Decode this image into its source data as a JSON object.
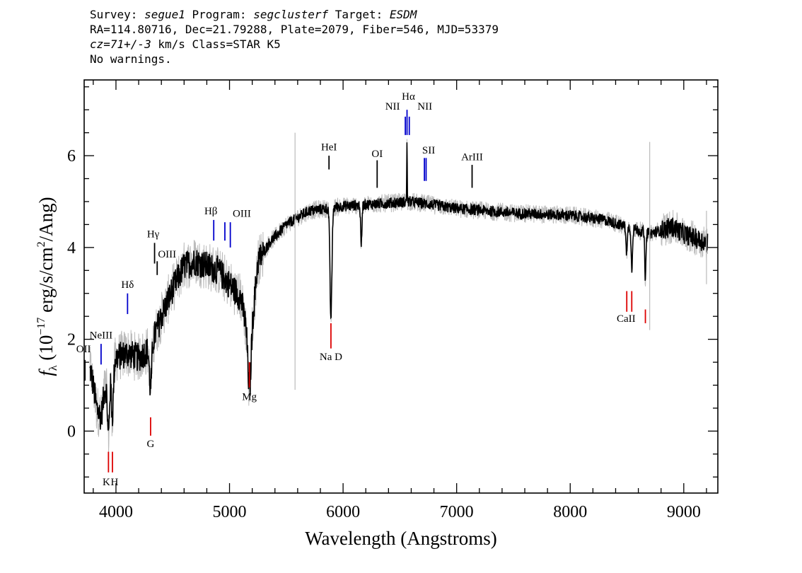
{
  "header": {
    "line1": {
      "survey_label": "Survey: ",
      "survey": "segue1",
      "program_label": " Program: ",
      "program": "segclusterf",
      "target_label": " Target: ",
      "target": "ESDM"
    },
    "line2": "RA=114.80716, Dec=21.79288, Plate=2079, Fiber=546, MJD=53379",
    "line3": {
      "cz": "cz=71+/-3",
      "rest": " km/s Class=STAR K5"
    },
    "line4": "No warnings."
  },
  "chart_data": {
    "type": "line",
    "xlabel": "Wavelength (Angstroms)",
    "ylabel_main": "f",
    "ylabel_sub": "λ",
    "ylabel_rest": " (10",
    "ylabel_exp": "−17",
    "ylabel_rest2": " erg/s/cm",
    "ylabel_exp2": "2",
    "ylabel_rest3": "/Ang)",
    "xlim": [
      3720,
      9300
    ],
    "ylim": [
      -1.35,
      7.65
    ],
    "xticks": [
      4000,
      5000,
      6000,
      7000,
      8000,
      9000
    ],
    "yticks": [
      0,
      2,
      4,
      6
    ],
    "colors": {
      "flux": "#000000",
      "error": "#bbbbbb",
      "emission": "#0000cc",
      "absorption": "#dd0000",
      "sky": "#000000"
    },
    "continuum_points": [
      [
        3780,
        1.3
      ],
      [
        3830,
        0.5
      ],
      [
        3870,
        0.3
      ],
      [
        3900,
        0.9
      ],
      [
        3950,
        1.2
      ],
      [
        4000,
        1.6
      ],
      [
        4100,
        1.7
      ],
      [
        4200,
        1.6
      ],
      [
        4300,
        1.8
      ],
      [
        4400,
        2.5
      ],
      [
        4500,
        3.1
      ],
      [
        4600,
        3.6
      ],
      [
        4700,
        3.7
      ],
      [
        4800,
        3.6
      ],
      [
        4900,
        3.5
      ],
      [
        5000,
        3.2
      ],
      [
        5100,
        2.9
      ],
      [
        5180,
        1.8
      ],
      [
        5250,
        3.7
      ],
      [
        5350,
        4.1
      ],
      [
        5500,
        4.5
      ],
      [
        5700,
        4.8
      ],
      [
        6000,
        4.9
      ],
      [
        6300,
        4.95
      ],
      [
        6600,
        5.0
      ],
      [
        7000,
        4.85
      ],
      [
        7500,
        4.75
      ],
      [
        8000,
        4.7
      ],
      [
        8300,
        4.6
      ],
      [
        8500,
        4.45
      ],
      [
        8700,
        4.3
      ],
      [
        8900,
        4.45
      ],
      [
        9000,
        4.3
      ],
      [
        9100,
        4.2
      ],
      [
        9200,
        4.1
      ]
    ],
    "absorption_features": [
      {
        "x": 3934,
        "depth": 1.2,
        "w": 12
      },
      {
        "x": 3969,
        "depth": 1.0,
        "w": 12
      },
      {
        "x": 4305,
        "depth": 0.9,
        "w": 14
      },
      {
        "x": 5175,
        "depth": 1.0,
        "w": 18
      },
      {
        "x": 5893,
        "depth": 2.4,
        "w": 12
      },
      {
        "x": 6160,
        "depth": 0.9,
        "w": 8
      },
      {
        "x": 8498,
        "depth": 0.6,
        "w": 8
      },
      {
        "x": 8542,
        "depth": 0.9,
        "w": 8
      },
      {
        "x": 8662,
        "depth": 1.0,
        "w": 8
      }
    ],
    "emission_features": [
      {
        "x": 6563,
        "height": 1.4,
        "w": 3
      }
    ],
    "sky_lines": [
      {
        "x": 5577,
        "y1": 0.9,
        "y2": 6.5
      },
      {
        "x": 8700,
        "y1": 2.2,
        "y2": 6.3
      },
      {
        "x": 9200,
        "y1": 3.2,
        "y2": 4.8
      }
    ],
    "line_markers": [
      {
        "label": "OII",
        "x": 3727,
        "y1": 1.1,
        "y2": 1.55,
        "color": "#000000",
        "label_y": 1.72,
        "label_dx": -2
      },
      {
        "label": "NeIII",
        "x": 3869,
        "y1": 1.45,
        "y2": 1.9,
        "color": "#0000cc",
        "label_y": 2.02,
        "label_dx": 0
      },
      {
        "label": "Hδ",
        "x": 4102,
        "y1": 2.55,
        "y2": 3.0,
        "color": "#0000cc",
        "label_y": 3.12,
        "label_dx": 0
      },
      {
        "label": "Hγ",
        "x": 4340,
        "y1": 3.65,
        "y2": 4.1,
        "color": "#000000",
        "label_y": 4.22,
        "label_dx": -2
      },
      {
        "label": "OIII",
        "x": 4363,
        "y1": 3.4,
        "y2": 3.7,
        "color": "#000000",
        "label_y": 3.78,
        "label_dx": 14
      },
      {
        "label": "Hβ",
        "x": 4861,
        "y1": 4.15,
        "y2": 4.6,
        "color": "#0000cc",
        "label_y": 4.72,
        "label_dx": -4
      },
      {
        "label": "OIII",
        "x": 4959,
        "y1": 4.15,
        "y2": 4.55,
        "color": "#0000cc",
        "label_y": 4.67,
        "label_dx": 24
      },
      {
        "label": "",
        "x": 5007,
        "y1": 4.0,
        "y2": 4.55,
        "color": "#0000cc",
        "label_y": 0,
        "label_dx": 0
      },
      {
        "label": "HeI",
        "x": 5876,
        "y1": 5.7,
        "y2": 6.0,
        "color": "#000000",
        "label_y": 6.12,
        "label_dx": 0
      },
      {
        "label": "OI",
        "x": 6300,
        "y1": 5.3,
        "y2": 5.9,
        "color": "#000000",
        "label_y": 5.97,
        "label_dx": 0
      },
      {
        "label": "NII",
        "x": 6548,
        "y1": 6.45,
        "y2": 6.85,
        "color": "#0000cc",
        "label_y": 7.0,
        "label_dx": -18
      },
      {
        "label": "Hα",
        "x": 6563,
        "y1": 6.45,
        "y2": 7.0,
        "color": "#0000cc",
        "label_y": 7.22,
        "label_dx": 2
      },
      {
        "label": "NII",
        "x": 6583,
        "y1": 6.45,
        "y2": 6.85,
        "color": "#0000cc",
        "label_y": 7.0,
        "label_dx": 22
      },
      {
        "label": "SII",
        "x": 6716,
        "y1": 5.45,
        "y2": 5.95,
        "color": "#0000cc",
        "label_y": 6.05,
        "label_dx": 6
      },
      {
        "label": "",
        "x": 6731,
        "y1": 5.45,
        "y2": 5.95,
        "color": "#0000cc",
        "label_y": 0,
        "label_dx": 0
      },
      {
        "label": "ArIII",
        "x": 7136,
        "y1": 5.3,
        "y2": 5.8,
        "color": "#000000",
        "label_y": 5.9,
        "label_dx": 0
      },
      {
        "label": "K",
        "x": 3934,
        "y1": -0.9,
        "y2": -0.45,
        "color": "#dd0000",
        "label_y": -1.18,
        "label_dx": -3
      },
      {
        "label": "H",
        "x": 3969,
        "y1": -0.9,
        "y2": -0.45,
        "color": "#dd0000",
        "label_y": -1.18,
        "label_dx": 3
      },
      {
        "label": "G",
        "x": 4305,
        "y1": 0.3,
        "y2": -0.1,
        "color": "#dd0000",
        "label_y": -0.35,
        "label_dx": 0
      },
      {
        "label": "Mg",
        "x": 5175,
        "y1": 1.5,
        "y2": 0.95,
        "color": "#dd0000",
        "label_y": 0.68,
        "label_dx": 0
      },
      {
        "label": "Na D",
        "x": 5893,
        "y1": 2.35,
        "y2": 1.8,
        "color": "#dd0000",
        "label_y": 1.55,
        "label_dx": 0
      },
      {
        "label": "",
        "x": 8498,
        "y1": 3.05,
        "y2": 2.6,
        "color": "#dd0000",
        "label_y": 0,
        "label_dx": 0
      },
      {
        "label": "CaII",
        "x": 8542,
        "y1": 3.05,
        "y2": 2.6,
        "color": "#dd0000",
        "label_y": 2.38,
        "label_dx": -8
      },
      {
        "label": "",
        "x": 8662,
        "y1": 2.65,
        "y2": 2.35,
        "color": "#dd0000",
        "label_y": 0,
        "label_dx": 0
      }
    ]
  }
}
